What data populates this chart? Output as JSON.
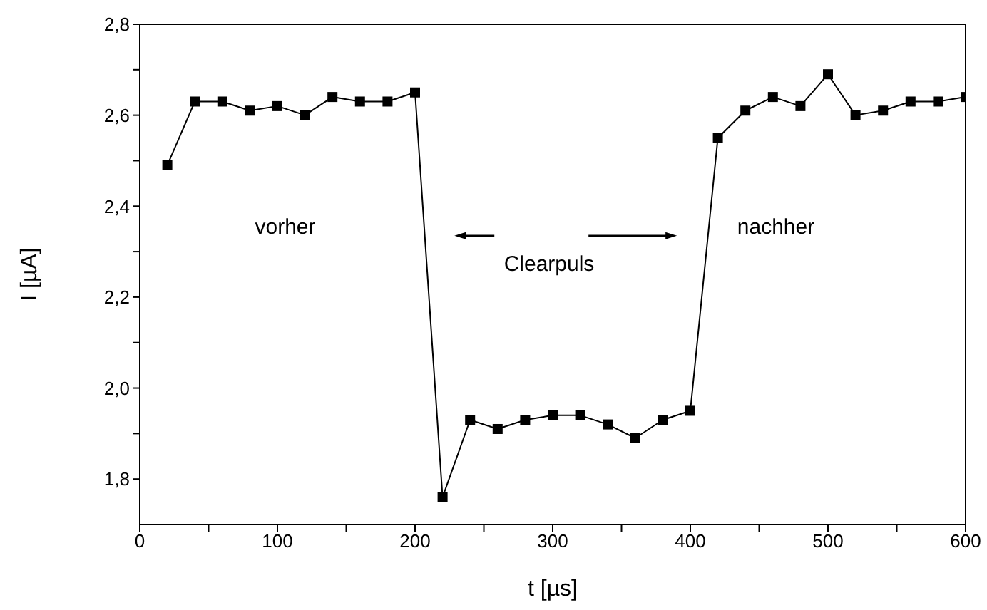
{
  "chart_data": {
    "type": "line",
    "xlabel": "t [µs]",
    "ylabel": "I [µA]",
    "x": [
      20,
      40,
      60,
      80,
      100,
      120,
      140,
      160,
      180,
      200,
      220,
      240,
      260,
      280,
      300,
      320,
      340,
      360,
      380,
      400,
      420,
      440,
      460,
      480,
      500,
      520,
      540,
      560,
      580,
      600
    ],
    "series": [
      {
        "color": "#000000",
        "values": [
          2.49,
          2.63,
          2.63,
          2.61,
          2.62,
          2.6,
          2.64,
          2.63,
          2.63,
          2.65,
          1.76,
          1.93,
          1.91,
          1.93,
          1.94,
          1.94,
          1.92,
          1.89,
          1.93,
          1.95,
          2.55,
          2.61,
          2.64,
          2.62,
          2.69,
          2.6,
          2.61,
          2.63,
          2.63,
          2.64
        ]
      }
    ],
    "xlim": [
      0,
      600
    ],
    "xticks": [
      0,
      {
        "value": 50,
        "label": null
      },
      100,
      {
        "value": 150,
        "label": null
      },
      200,
      {
        "value": 250,
        "label": null
      },
      300,
      {
        "value": 350,
        "label": null
      },
      400,
      {
        "value": 450,
        "label": null
      },
      500,
      {
        "value": 550,
        "label": null
      },
      600
    ],
    "ylim": [
      1.7,
      2.8
    ],
    "yticks": [
      {
        "value": 1.8,
        "label": "1,8"
      },
      {
        "value": 1.9,
        "label": null
      },
      {
        "value": 2.0,
        "label": "2,0"
      },
      {
        "value": 2.1,
        "label": null
      },
      {
        "value": 2.2,
        "label": "2,2"
      },
      {
        "value": 2.3,
        "label": null
      },
      {
        "value": 2.4,
        "label": "2,4"
      },
      {
        "value": 2.5,
        "label": null
      },
      {
        "value": 2.6,
        "label": "2,6"
      },
      {
        "value": 2.7,
        "label": null
      },
      {
        "value": 2.8,
        "label": "2,8"
      }
    ],
    "annotations": [
      "vorher",
      "Clearpuls",
      "nachher"
    ],
    "marker": "square",
    "line_style": "solid",
    "grid": false,
    "legend": false
  }
}
